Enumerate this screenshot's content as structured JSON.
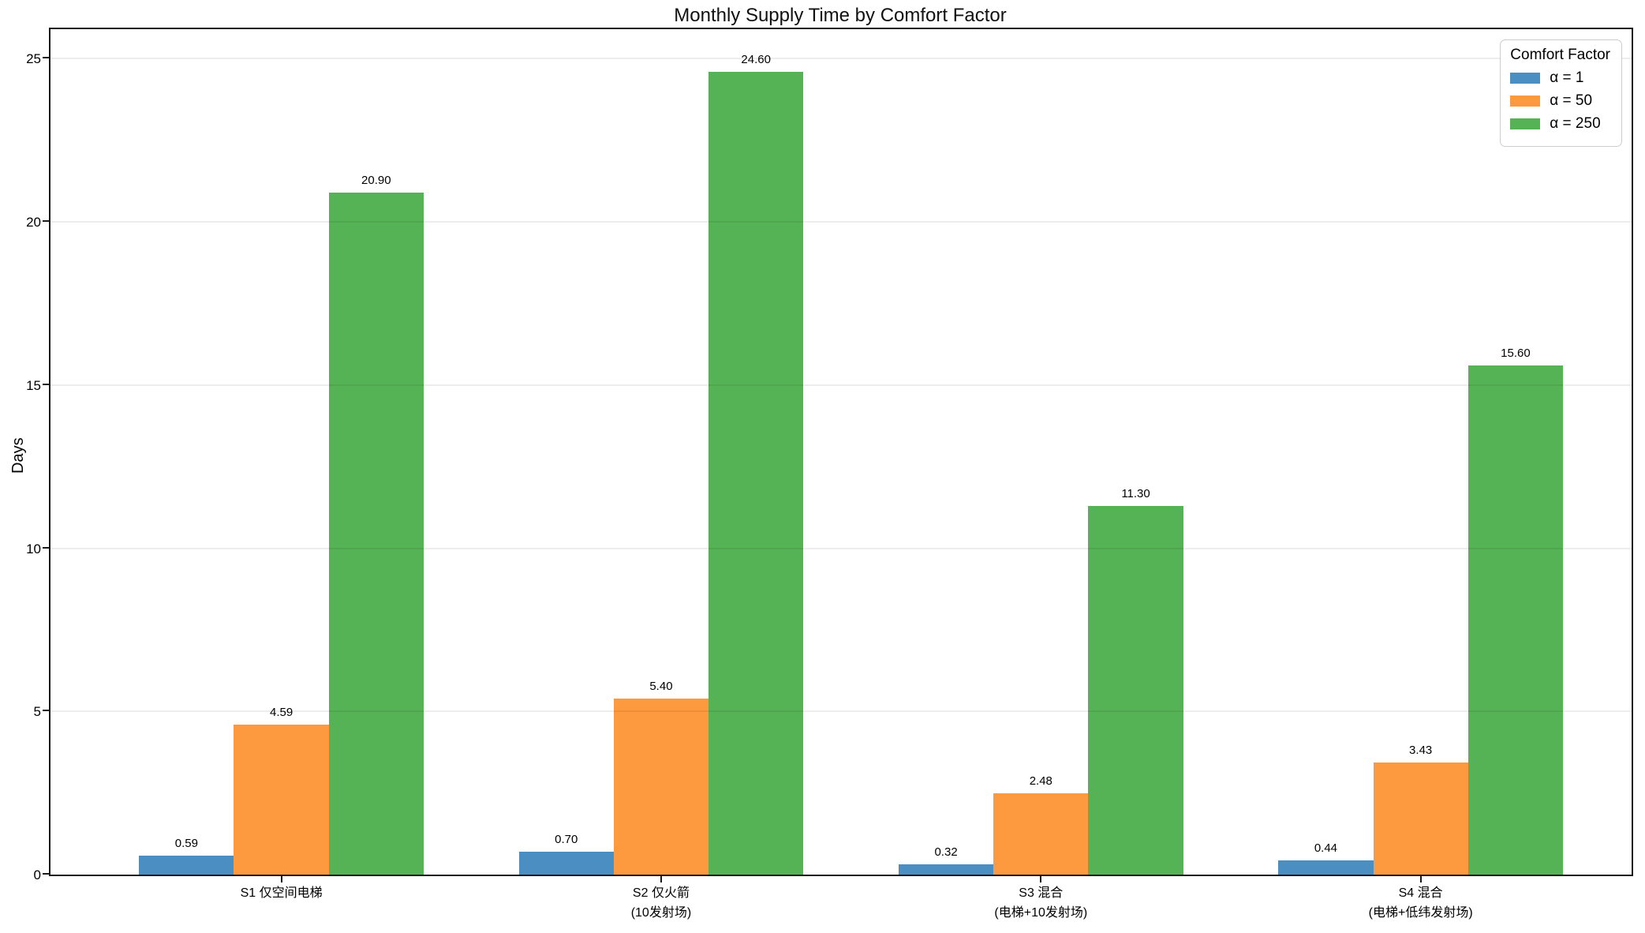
{
  "title": "Monthly Supply Time by Comfort Factor",
  "ylabel": "Days",
  "legend": {
    "title": "Comfort Factor"
  },
  "chart_data": {
    "type": "bar",
    "title": "Monthly Supply Time by Comfort Factor",
    "xlabel": "",
    "ylabel": "Days",
    "ylim": [
      0,
      25.9
    ],
    "yticks": [
      0,
      5,
      10,
      15,
      20,
      25
    ],
    "grid": true,
    "legend_title": "Comfort Factor",
    "legend_position": "upper right",
    "categories": [
      {
        "lines": [
          "S1 仅空间电梯"
        ]
      },
      {
        "lines": [
          "S2 仅火箭",
          "(10发射场)"
        ]
      },
      {
        "lines": [
          "S3 混合",
          "(电梯+10发射场)"
        ]
      },
      {
        "lines": [
          "S4 混合",
          "(电梯+低纬发射场)"
        ]
      }
    ],
    "series": [
      {
        "name": "α = 1",
        "color": "#4b8fc2",
        "values": [
          0.59,
          0.7,
          0.32,
          0.44
        ],
        "labels": [
          "0.59",
          "0.70",
          "0.32",
          "0.44"
        ]
      },
      {
        "name": "α = 50",
        "color": "#fd9a40",
        "values": [
          4.59,
          5.4,
          2.48,
          3.43
        ],
        "labels": [
          "4.59",
          "5.40",
          "2.48",
          "3.43"
        ]
      },
      {
        "name": "α = 250",
        "color": "#55b355",
        "values": [
          20.9,
          24.6,
          11.3,
          15.6
        ],
        "labels": [
          "20.90",
          "24.60",
          "11.30",
          "15.60"
        ]
      }
    ]
  }
}
